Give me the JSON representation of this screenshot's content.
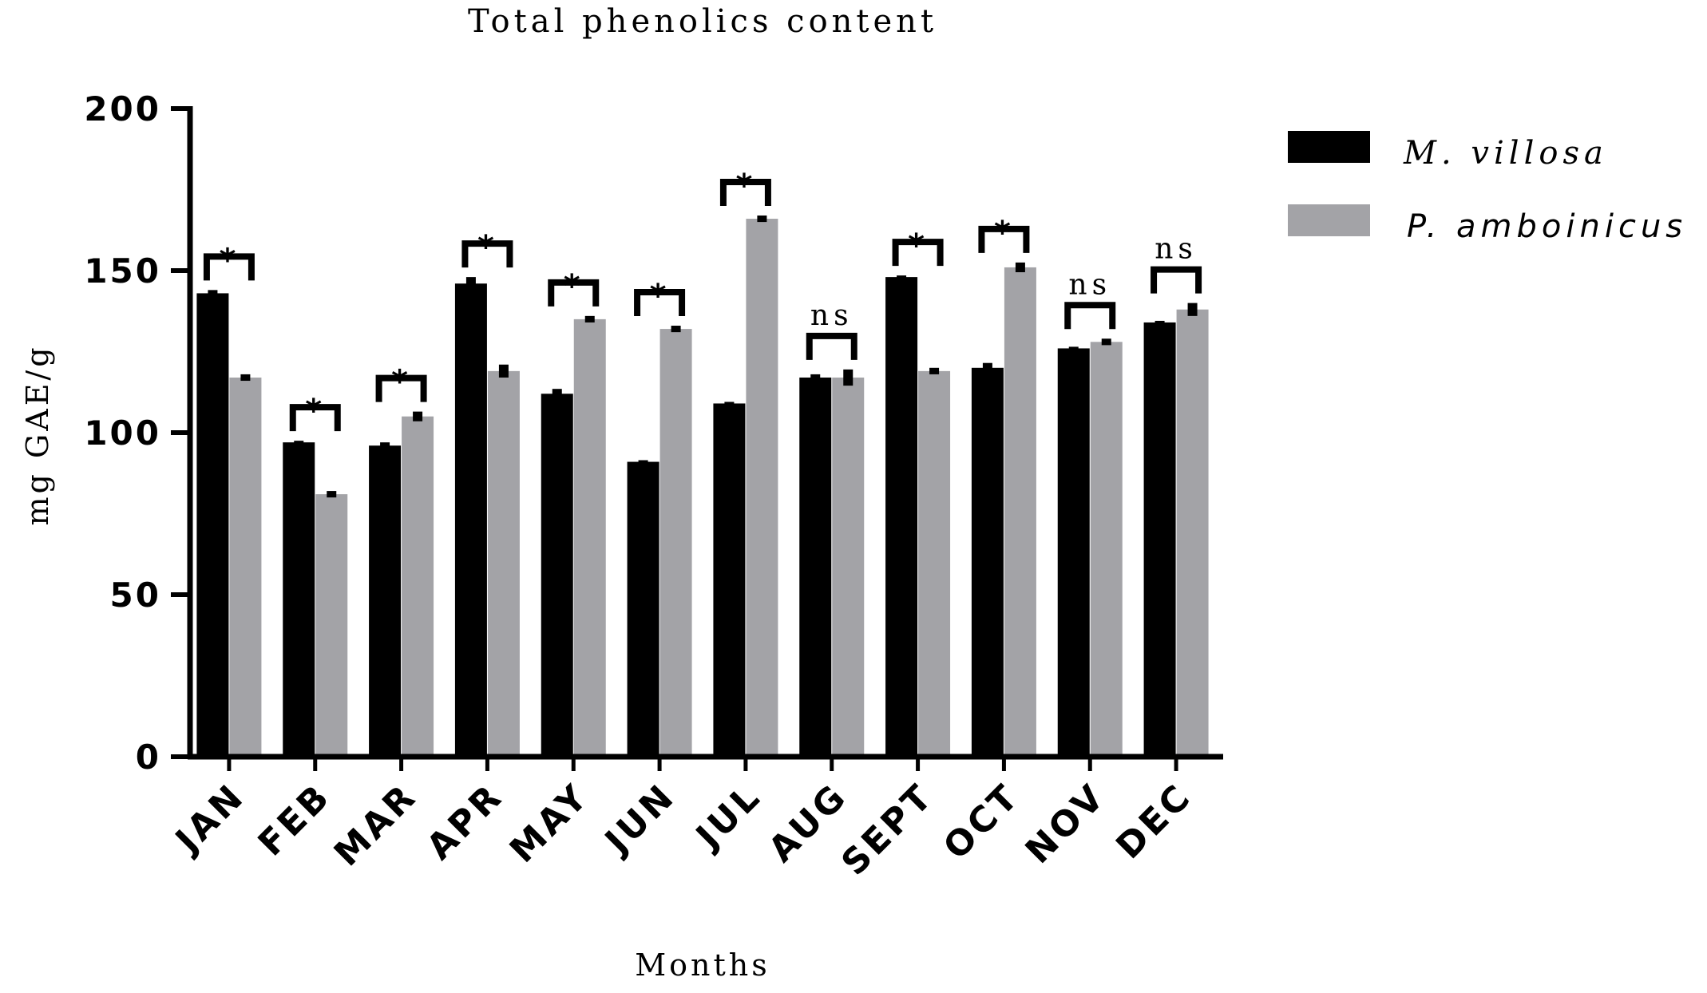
{
  "chart_data": {
    "type": "bar",
    "title": "Total phenolics content",
    "xlabel": "Months",
    "ylabel": "mg GAE/g",
    "ylim": [
      0,
      200
    ],
    "yticks": [
      "0",
      "50",
      "100",
      "150",
      "200"
    ],
    "categories": [
      "JAN",
      "FEB",
      "MAR",
      "APR",
      "MAY",
      "JUN",
      "JUL",
      "AUG",
      "SEPT",
      "OCT",
      "NOV",
      "DEC"
    ],
    "series": [
      {
        "name": "M. villosa",
        "color": "#000000",
        "values": [
          143,
          97,
          96,
          146,
          112,
          91,
          109,
          117,
          148,
          120,
          126,
          134
        ],
        "errors": [
          1,
          0.5,
          1,
          2,
          1.5,
          0.5,
          0,
          1,
          0.5,
          1.5,
          0.5,
          0.5
        ]
      },
      {
        "name": "P. amboinicus",
        "color": "#a3a3a7",
        "values": [
          117,
          81,
          105,
          119,
          135,
          132,
          166,
          117,
          119,
          151,
          128,
          138
        ],
        "errors": [
          1,
          1,
          1.5,
          2,
          1,
          1,
          1,
          2.5,
          1,
          1.5,
          1,
          2
        ]
      }
    ],
    "significance": [
      "*",
      "*",
      "*",
      "*",
      "*",
      "*",
      "*",
      "ns",
      "*",
      "*",
      "ns",
      "ns"
    ],
    "legend": {
      "position": "right"
    },
    "grid": false
  }
}
